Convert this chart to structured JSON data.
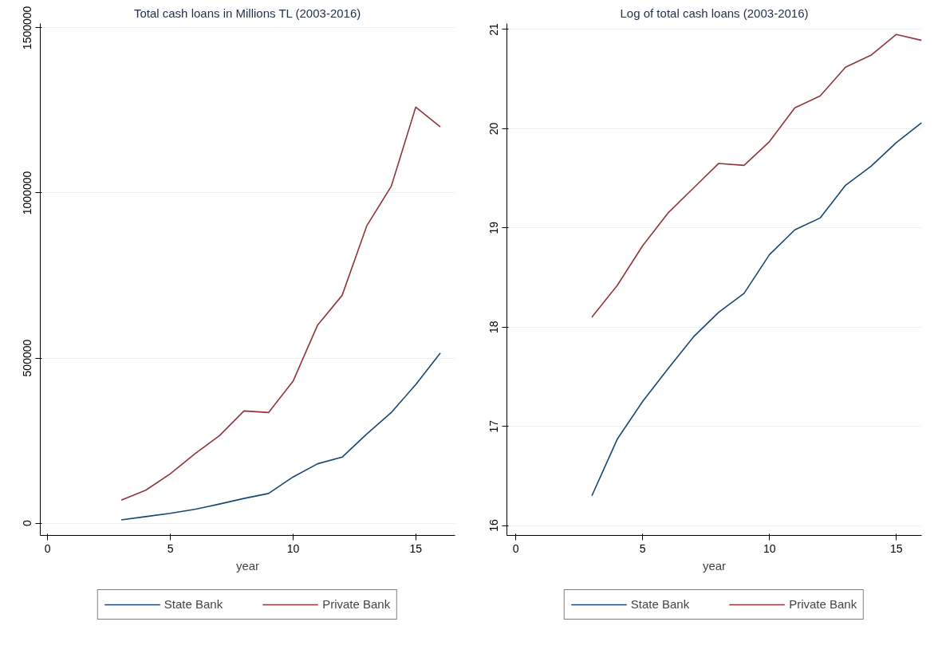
{
  "chart_data": [
    {
      "type": "line",
      "title": "Total cash loans in Millions TL (2003-2016)",
      "xlabel": "year",
      "x": [
        3,
        4,
        5,
        6,
        7,
        8,
        9,
        10,
        11,
        12,
        13,
        14,
        15,
        16
      ],
      "xlim": [
        -0.3,
        16.6
      ],
      "xticks": [
        0,
        5,
        10,
        15
      ],
      "ylim": [
        -37000,
        1513000
      ],
      "yticks": [
        0,
        500000,
        1000000,
        1500000
      ],
      "grid": "y",
      "legend": "bottom",
      "line_style": "solid",
      "series": [
        {
          "name": "State Bank",
          "color": "#1a476f",
          "values": [
            10000,
            20000,
            30000,
            42000,
            58000,
            75000,
            90000,
            140000,
            180000,
            200000,
            270000,
            335000,
            420000,
            515000
          ]
        },
        {
          "name": "Private Bank",
          "color": "#90353b",
          "values": [
            70000,
            100000,
            150000,
            210000,
            265000,
            340000,
            335000,
            430000,
            600000,
            690000,
            900000,
            1020000,
            1260000,
            1200000
          ]
        }
      ]
    },
    {
      "type": "line",
      "title": "Log of total cash loans (2003-2016)",
      "xlabel": "year",
      "x": [
        3,
        4,
        5,
        6,
        7,
        8,
        9,
        10,
        11,
        12,
        13,
        14,
        15,
        16
      ],
      "xlim": [
        -0.35,
        16.0
      ],
      "xticks": [
        0,
        5,
        10,
        15
      ],
      "ylim": [
        15.9,
        21.06
      ],
      "yticks": [
        16,
        17,
        18,
        19,
        20,
        21
      ],
      "grid": "y",
      "legend": "bottom",
      "line_style": "solid",
      "series": [
        {
          "name": "State Bank",
          "color": "#1a476f",
          "values": [
            16.3,
            16.87,
            17.25,
            17.58,
            17.9,
            18.15,
            18.34,
            18.73,
            18.98,
            19.1,
            19.43,
            19.62,
            19.86,
            20.06
          ]
        },
        {
          "name": "Private Bank",
          "color": "#90353b",
          "values": [
            18.1,
            18.42,
            18.82,
            19.15,
            19.4,
            19.65,
            19.63,
            19.87,
            20.21,
            20.33,
            20.62,
            20.74,
            20.95,
            20.89
          ]
        }
      ]
    }
  ]
}
